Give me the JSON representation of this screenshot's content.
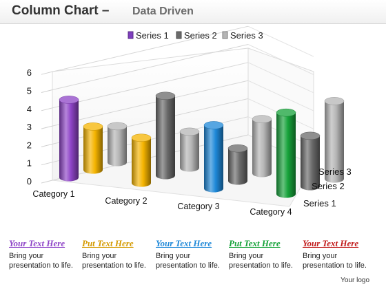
{
  "header": {
    "title": "Column Chart –",
    "subtitle": "Data Driven"
  },
  "chart_data": {
    "type": "bar",
    "style": "3d-cylinder",
    "categories": [
      "Category 1",
      "Category 2",
      "Category 3",
      "Category 4"
    ],
    "series": [
      {
        "name": "Series 1",
        "values": [
          4.3,
          2.5,
          3.5,
          4.5
        ]
      },
      {
        "name": "Series 2",
        "values": [
          2.4,
          4.4,
          1.8,
          2.8
        ]
      },
      {
        "name": "Series 3",
        "values": [
          2.0,
          2.0,
          3.0,
          4.3
        ]
      }
    ],
    "series_colors": [
      "#7f3fbf",
      "#6a6a6a",
      "#b5b5b5"
    ],
    "front_colors": [
      "#8e44c7",
      "#f5b400",
      "#1e88d8",
      "#16a23a",
      "#e02020"
    ],
    "ylim": [
      0,
      6
    ],
    "yticks": [
      0,
      1,
      2,
      3,
      4,
      5,
      6
    ],
    "grid": true,
    "legend_position": "top-center",
    "depth_axis_labels": [
      "Series 3",
      "Series 2",
      "Series 1"
    ]
  },
  "callouts": [
    {
      "title": "Your  Text Here",
      "color": "#8e44c7",
      "line1": "Bring your",
      "line2": "presentation to life."
    },
    {
      "title": "Put Text Here",
      "color": "#d49a00",
      "line1": "Bring your",
      "line2": "presentation to life."
    },
    {
      "title": "Your  Text Here",
      "color": "#1e88d8",
      "line1": "Bring your",
      "line2": "presentation to life."
    },
    {
      "title": "Put Text Here",
      "color": "#16a23a",
      "line1": "Bring your",
      "line2": "presentation to life."
    },
    {
      "title": "Your  Text Here",
      "color": "#c01818",
      "line1": "Bring your",
      "line2": "presentation to life."
    }
  ],
  "footer": {
    "logo": "Your logo"
  }
}
